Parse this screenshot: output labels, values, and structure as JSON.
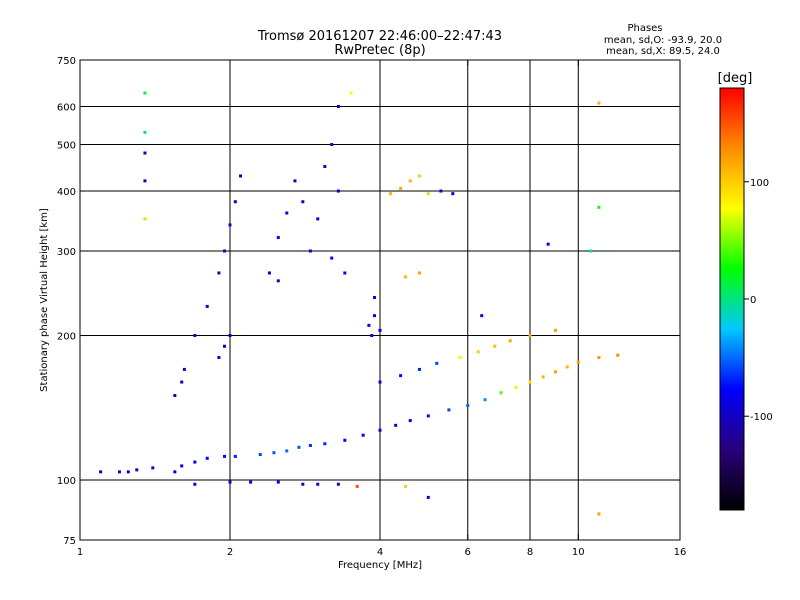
{
  "header": {
    "title_line1": "Tromsø 20161207 22:46:00–22:47:43",
    "title_line2": "RwPretec (8p)"
  },
  "phases_box": {
    "heading": "Phases",
    "line_o": "mean, sd,O: -93.9, 20.0",
    "line_x": "mean, sd,X:  89.5, 24.0"
  },
  "chart_data": {
    "type": "scatter",
    "xlabel": "Frequency [MHz]",
    "ylabel": "Stationary phase Virtual Height [km]",
    "x_scale": "log",
    "y_scale": "log",
    "xlim": [
      1,
      16
    ],
    "ylim": [
      75,
      750
    ],
    "x_ticks": [
      1,
      2,
      4,
      6,
      8,
      10,
      16
    ],
    "x_tick_labels": [
      "1",
      "2",
      "4",
      "6",
      "8",
      "10",
      "16"
    ],
    "x_gridlines": [
      2,
      4,
      6,
      8,
      10
    ],
    "y_ticks": [
      75,
      100,
      200,
      300,
      400,
      500,
      600,
      750
    ],
    "y_tick_labels": [
      "75",
      "100",
      "200",
      "300",
      "400",
      "500",
      "600",
      "750"
    ],
    "y_gridlines": [
      100,
      200,
      300,
      400,
      500,
      600
    ],
    "grid": true,
    "colorbar": {
      "label": "[deg]",
      "range": [
        -180,
        180
      ],
      "ticks": [
        100,
        0,
        -100
      ],
      "tick_labels": [
        "100",
        "0",
        "-100"
      ],
      "colors": [
        "#000000",
        "#2a007a",
        "#0000ff",
        "#00c8ff",
        "#00ff00",
        "#ffff00",
        "#ff8c00",
        "#ff0000"
      ]
    },
    "series": [
      {
        "points": [
          [
            1.1,
            104,
            -95
          ],
          [
            1.2,
            104,
            -98
          ],
          [
            1.25,
            104,
            -92
          ],
          [
            1.3,
            105,
            -96
          ],
          [
            1.4,
            106,
            -90
          ],
          [
            1.55,
            104,
            -95
          ],
          [
            1.6,
            107,
            -88
          ],
          [
            1.7,
            109,
            -85
          ],
          [
            1.8,
            111,
            -80
          ],
          [
            1.95,
            112,
            -75
          ],
          [
            2.05,
            112,
            -70
          ],
          [
            2.3,
            113,
            -60
          ],
          [
            2.45,
            114,
            -55
          ],
          [
            2.6,
            115,
            -50
          ],
          [
            2.75,
            117,
            -55
          ],
          [
            2.9,
            118,
            -65
          ],
          [
            3.1,
            119,
            -70
          ],
          [
            3.4,
            121,
            -80
          ],
          [
            3.7,
            124,
            -85
          ],
          [
            4.0,
            127,
            -88
          ],
          [
            4.3,
            130,
            -85
          ],
          [
            4.6,
            133,
            -80
          ],
          [
            5.0,
            136,
            -75
          ],
          [
            5.5,
            140,
            -60
          ],
          [
            6.0,
            143,
            -50
          ],
          [
            6.5,
            147,
            -40
          ],
          [
            7.0,
            152,
            40
          ],
          [
            7.5,
            156,
            70
          ],
          [
            8.0,
            160,
            90
          ],
          [
            8.5,
            164,
            110
          ],
          [
            9.0,
            168,
            120
          ],
          [
            9.5,
            172,
            110
          ],
          [
            10.0,
            176,
            120
          ],
          [
            11.0,
            180,
            125
          ],
          [
            12.0,
            182,
            130
          ],
          [
            1.7,
            98,
            -92
          ],
          [
            2.0,
            99,
            -95
          ],
          [
            2.2,
            99,
            -95
          ],
          [
            2.5,
            99,
            -90
          ],
          [
            2.8,
            98,
            -92
          ],
          [
            3.0,
            98,
            -94
          ],
          [
            3.3,
            98,
            -96
          ],
          [
            3.6,
            97,
            150
          ],
          [
            4.5,
            97,
            100
          ],
          [
            1.55,
            150,
            -98
          ],
          [
            1.6,
            160,
            -100
          ],
          [
            1.62,
            170,
            -102
          ],
          [
            1.7,
            200,
            -105
          ],
          [
            1.8,
            230,
            -105
          ],
          [
            1.9,
            270,
            -100
          ],
          [
            1.95,
            300,
            -98
          ],
          [
            2.0,
            340,
            -95
          ],
          [
            2.05,
            380,
            -100
          ],
          [
            2.1,
            430,
            -105
          ],
          [
            1.9,
            180,
            -100
          ],
          [
            1.95,
            190,
            -100
          ],
          [
            2.0,
            200,
            -98
          ],
          [
            2.4,
            270,
            -98
          ],
          [
            2.5,
            320,
            -95
          ],
          [
            2.6,
            360,
            -95
          ],
          [
            2.7,
            420,
            -100
          ],
          [
            2.8,
            380,
            -95
          ],
          [
            2.9,
            300,
            -95
          ],
          [
            2.5,
            260,
            -100
          ],
          [
            3.0,
            350,
            -90
          ],
          [
            3.1,
            450,
            -92
          ],
          [
            3.2,
            500,
            -95
          ],
          [
            3.2,
            290,
            -88
          ],
          [
            3.3,
            400,
            -85
          ],
          [
            3.4,
            270,
            -90
          ],
          [
            3.8,
            210,
            -90
          ],
          [
            3.9,
            220,
            -85
          ],
          [
            3.85,
            200,
            -88
          ],
          [
            4.0,
            205,
            -82
          ],
          [
            3.9,
            240,
            -86
          ],
          [
            4.2,
            395,
            110
          ],
          [
            4.4,
            405,
            115
          ],
          [
            4.6,
            420,
            110
          ],
          [
            4.8,
            430,
            100
          ],
          [
            5.0,
            395,
            60
          ],
          [
            5.3,
            400,
            -90
          ],
          [
            5.6,
            395,
            -100
          ],
          [
            4.8,
            270,
            120
          ],
          [
            4.5,
            265,
            110
          ],
          [
            4.0,
            160,
            -80
          ],
          [
            4.4,
            165,
            -75
          ],
          [
            4.8,
            170,
            -70
          ],
          [
            5.2,
            175,
            -60
          ],
          [
            5.8,
            180,
            80
          ],
          [
            6.3,
            185,
            100
          ],
          [
            6.8,
            190,
            110
          ],
          [
            7.3,
            195,
            120
          ],
          [
            8.0,
            200,
            115
          ],
          [
            9.0,
            205,
            120
          ],
          [
            1.35,
            640,
            10
          ],
          [
            1.35,
            530,
            0
          ],
          [
            1.35,
            480,
            -100
          ],
          [
            1.35,
            420,
            -95
          ],
          [
            1.35,
            350,
            60
          ],
          [
            3.3,
            600,
            -98
          ],
          [
            3.5,
            640,
            80
          ],
          [
            10.6,
            300,
            0
          ],
          [
            11.0,
            610,
            110
          ],
          [
            11.0,
            370,
            30
          ],
          [
            6.4,
            220,
            -90
          ],
          [
            8.7,
            310,
            -95
          ],
          [
            11.0,
            85,
            120
          ],
          [
            5.0,
            92,
            -90
          ]
        ]
      }
    ]
  }
}
